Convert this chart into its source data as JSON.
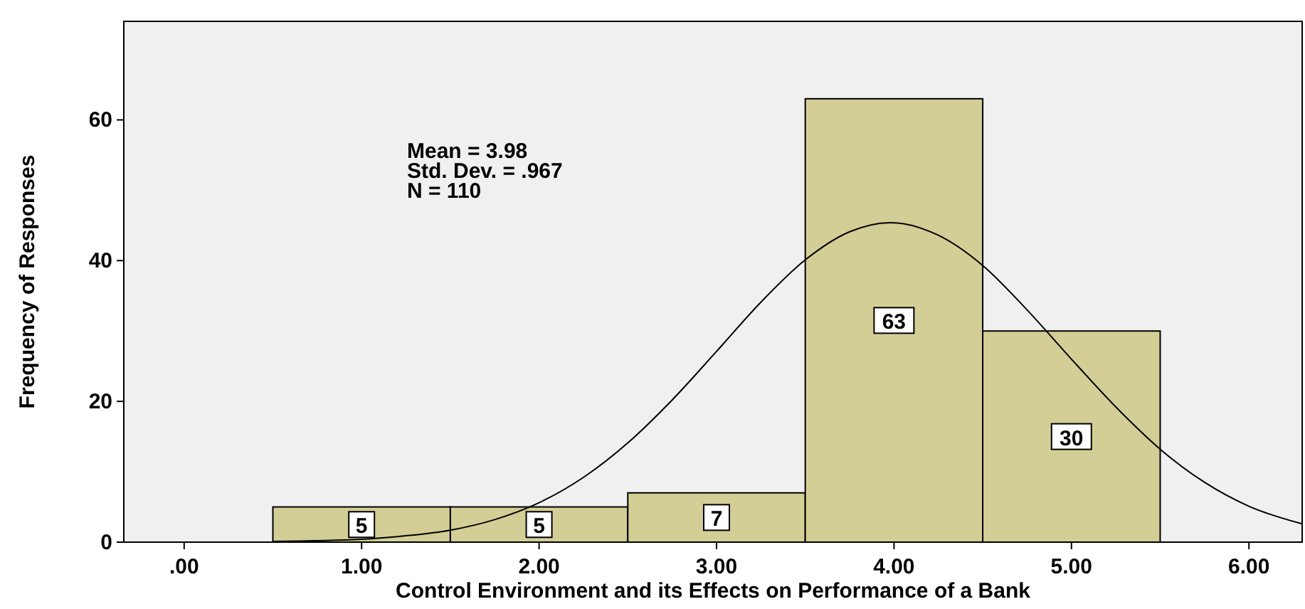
{
  "chart_data": {
    "type": "histogram",
    "xlabel": "Control Environment and its Effects on Performance of a Bank",
    "ylabel": "Frequency of Responses",
    "annotations": [
      "Mean = 3.98",
      "Std. Dev. = .967",
      "N = 110"
    ],
    "xlim": [
      -0.34,
      6.3
    ],
    "ylim": [
      0,
      74
    ],
    "xticks": [
      {
        "value": 0,
        "label": ".00"
      },
      {
        "value": 1,
        "label": "1.00"
      },
      {
        "value": 2,
        "label": "2.00"
      },
      {
        "value": 3,
        "label": "3.00"
      },
      {
        "value": 4,
        "label": "4.00"
      },
      {
        "value": 5,
        "label": "5.00"
      },
      {
        "value": 6,
        "label": "6.00"
      }
    ],
    "yticks": [
      0,
      20,
      40,
      60
    ],
    "series": [
      {
        "bins": [
          0.5,
          1.5,
          2.5,
          3.5,
          4.5,
          5.5
        ],
        "values": [
          5,
          5,
          7,
          63,
          30
        ],
        "value_labels": [
          "5",
          "5",
          "7",
          "63",
          "30"
        ],
        "color": "#d3ce96"
      },
      {
        "type": "line",
        "x": [
          0.5,
          1,
          1.25,
          1.5,
          1.75,
          2,
          2.25,
          2.5,
          2.75,
          3,
          3.25,
          3.5,
          3.75,
          3.98,
          4.25,
          4.5,
          4.75,
          5,
          5.25,
          5.5,
          5.75,
          6,
          6.3
        ],
        "values": [
          0.1,
          0.4,
          0.9,
          1.7,
          3.2,
          5.6,
          9.2,
          14.1,
          20.2,
          27.1,
          34.1,
          40.1,
          44.1,
          45.4,
          43.6,
          39.3,
          33.0,
          26.0,
          19.2,
          13.2,
          8.5,
          5.1,
          2.6
        ],
        "color": "#000000"
      }
    ]
  }
}
